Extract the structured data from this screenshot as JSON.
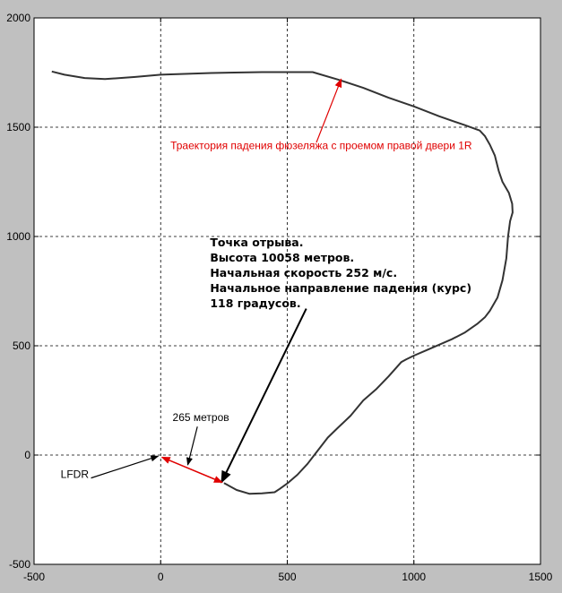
{
  "chart_data": {
    "type": "line",
    "title": "",
    "xlabel": "",
    "ylabel": "",
    "xlim": [
      -500,
      1500
    ],
    "ylim": [
      -500,
      2000
    ],
    "grid": true,
    "x_ticks": [
      "-500",
      "0",
      "500",
      "1000",
      "1500"
    ],
    "y_ticks": [
      "-500",
      "0",
      "500",
      "1000",
      "1500",
      "2000"
    ],
    "series": [
      {
        "color": "#333333",
        "points": [
          [
            -430,
            1755
          ],
          [
            -380,
            1740
          ],
          [
            -300,
            1725
          ],
          [
            -220,
            1720
          ],
          [
            -100,
            1730
          ],
          [
            0,
            1740
          ],
          [
            200,
            1748
          ],
          [
            400,
            1752
          ],
          [
            500,
            1752
          ],
          [
            600,
            1752
          ],
          [
            700,
            1718
          ],
          [
            800,
            1680
          ],
          [
            900,
            1635
          ],
          [
            1000,
            1595
          ],
          [
            1100,
            1550
          ],
          [
            1200,
            1510
          ],
          [
            1260,
            1485
          ],
          [
            1280,
            1460
          ],
          [
            1300,
            1420
          ],
          [
            1320,
            1370
          ],
          [
            1335,
            1300
          ],
          [
            1350,
            1250
          ],
          [
            1375,
            1200
          ],
          [
            1388,
            1150
          ],
          [
            1390,
            1110
          ],
          [
            1380,
            1070
          ],
          [
            1372,
            1000
          ],
          [
            1365,
            900
          ],
          [
            1350,
            800
          ],
          [
            1330,
            720
          ],
          [
            1300,
            660
          ],
          [
            1280,
            630
          ],
          [
            1250,
            600
          ],
          [
            1200,
            560
          ],
          [
            1150,
            530
          ],
          [
            1050,
            480
          ],
          [
            1000,
            455
          ],
          [
            970,
            438
          ],
          [
            950,
            425
          ],
          [
            900,
            360
          ],
          [
            850,
            300
          ],
          [
            800,
            250
          ],
          [
            750,
            180
          ],
          [
            700,
            125
          ],
          [
            660,
            80
          ],
          [
            620,
            20
          ],
          [
            580,
            -40
          ],
          [
            540,
            -90
          ],
          [
            500,
            -130
          ],
          [
            470,
            -155
          ],
          [
            450,
            -170
          ],
          [
            400,
            -175
          ],
          [
            350,
            -177
          ],
          [
            300,
            -160
          ],
          [
            250,
            -128
          ]
        ]
      }
    ],
    "annotations": [
      {
        "kind": "text-arrow",
        "color": "#e00000",
        "text": "Траектория падения фюзеляжа с проемом правой двери 1R",
        "text_at": [
          634,
          1400
        ],
        "arrow_from": [
          615,
          1430
        ],
        "arrow_to": [
          713,
          1720
        ]
      },
      {
        "kind": "text-arrow",
        "color": "#000000",
        "lines": [
          "Точка отрыва.",
          "Высота 10058 метров.",
          "Начальная скорость 252 м/с.",
          "Начальное направление падения (курс)",
          "118 градусов."
        ],
        "text_at": [
          195,
          955
        ],
        "arrow_from": [
          575,
          670
        ],
        "arrow_to": [
          240,
          -125
        ]
      },
      {
        "kind": "text-arrow",
        "color": "#000000",
        "text": "265 метров",
        "text_at": [
          47,
          155
        ],
        "arrow_from": [
          145,
          130
        ],
        "arrow_to": [
          107,
          -45
        ]
      },
      {
        "kind": "text-arrow",
        "color": "#000000",
        "text": "LFDR",
        "text_at": [
          -395,
          -105
        ],
        "arrow_from": [
          -275,
          -105
        ],
        "arrow_to": [
          -10,
          -5
        ]
      },
      {
        "kind": "double-arrow",
        "color": "#e00000",
        "from": [
          5,
          -10
        ],
        "to": [
          243,
          -125
        ]
      }
    ]
  }
}
